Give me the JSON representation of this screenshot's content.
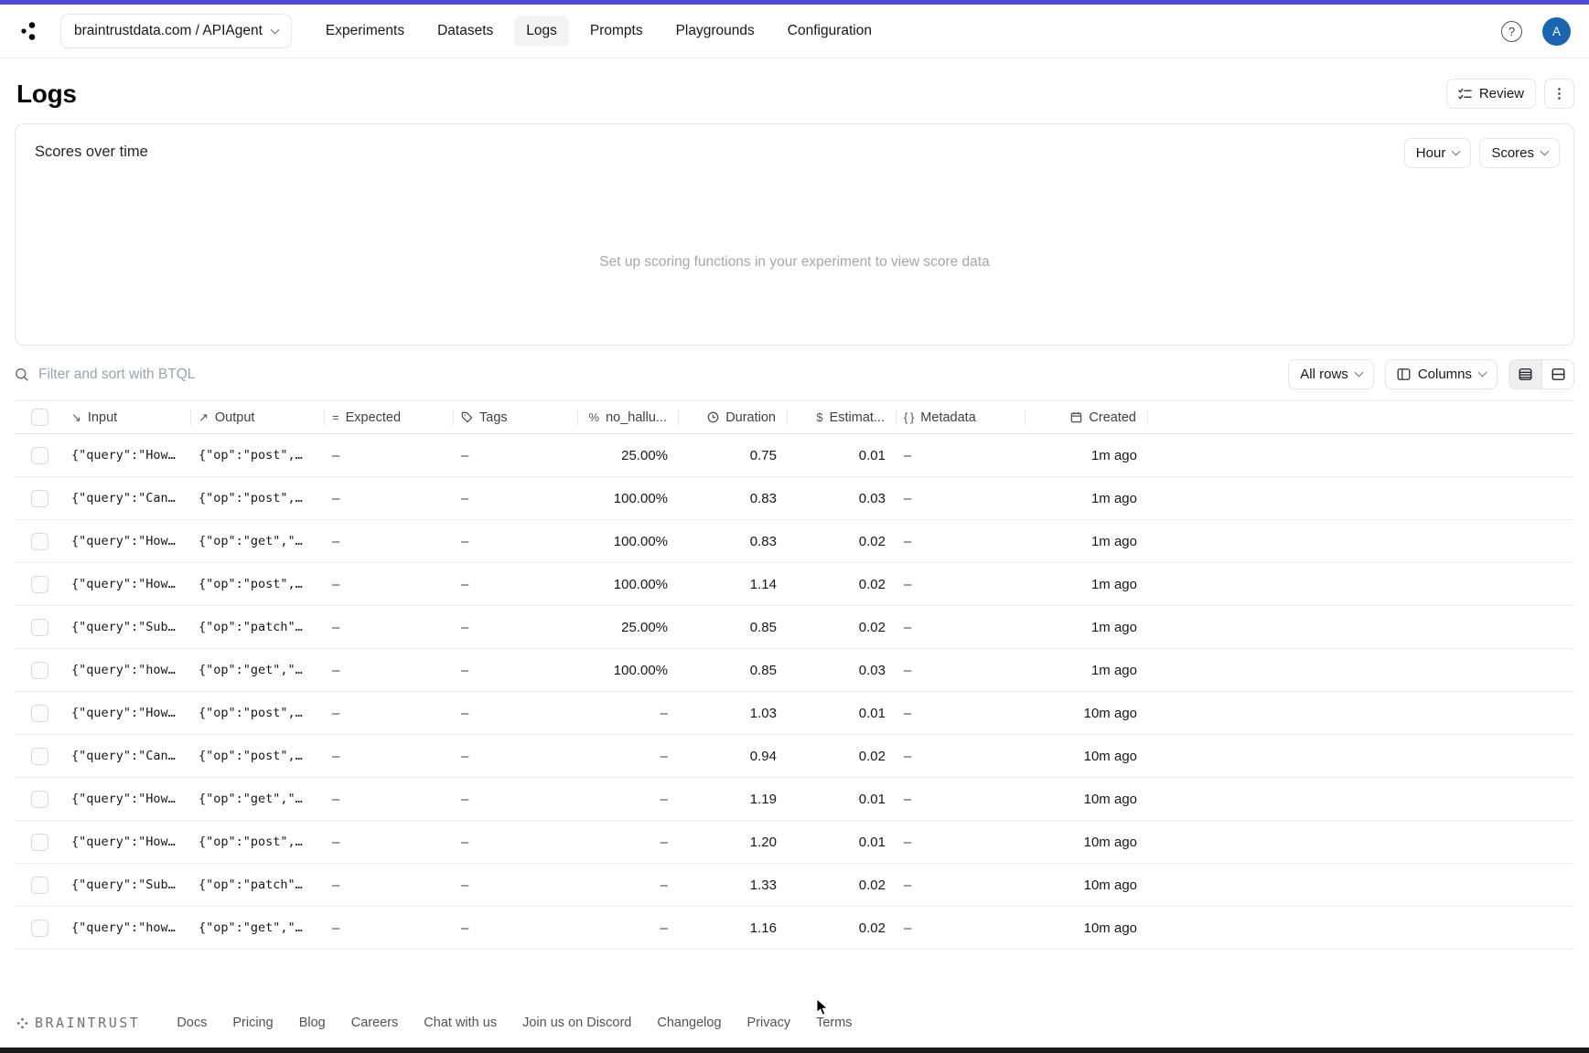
{
  "colors": {
    "accent_strip": "#4f49d8",
    "avatar_bg": "#1a65b0",
    "active_tab_bg": "#f4f4f5"
  },
  "header": {
    "project_selector": "braintrustdata.com / APIAgent",
    "nav": [
      "Experiments",
      "Datasets",
      "Logs",
      "Prompts",
      "Playgrounds",
      "Configuration"
    ],
    "active_tab": "Logs",
    "avatar_initial": "A",
    "help_glyph": "?"
  },
  "page": {
    "title": "Logs",
    "review_label": "Review"
  },
  "scores_panel": {
    "title": "Scores over time",
    "interval_label": "Hour",
    "metric_label": "Scores",
    "empty_text": "Set up scoring functions in your experiment to view score data"
  },
  "filter": {
    "placeholder": "Filter and sort with BTQL",
    "rows_filter_label": "All rows",
    "columns_label": "Columns"
  },
  "table": {
    "columns": [
      {
        "id": "select",
        "label": ""
      },
      {
        "id": "input",
        "label": "Input",
        "icon": "arrow-down-right"
      },
      {
        "id": "output",
        "label": "Output",
        "icon": "arrow-up-right"
      },
      {
        "id": "expected",
        "label": "Expected",
        "icon": "equals"
      },
      {
        "id": "tags",
        "label": "Tags",
        "icon": "tag"
      },
      {
        "id": "no_hallu",
        "label": "no_hallu...",
        "icon": "percent"
      },
      {
        "id": "duration",
        "label": "Duration",
        "icon": "clock"
      },
      {
        "id": "estimated",
        "label": "Estimat...",
        "icon": "dollar"
      },
      {
        "id": "metadata",
        "label": "Metadata",
        "icon": "braces"
      },
      {
        "id": "created",
        "label": "Created",
        "icon": "calendar"
      }
    ],
    "rows": [
      {
        "input": "{\"query\":\"How…",
        "output": "{\"op\":\"post\",…",
        "expected": "–",
        "tags": "–",
        "no_hallu": "25.00%",
        "duration": "0.75",
        "estimated": "0.01",
        "metadata": "–",
        "created": "1m ago"
      },
      {
        "input": "{\"query\":\"Can…",
        "output": "{\"op\":\"post\",…",
        "expected": "–",
        "tags": "–",
        "no_hallu": "100.00%",
        "duration": "0.83",
        "estimated": "0.03",
        "metadata": "–",
        "created": "1m ago"
      },
      {
        "input": "{\"query\":\"How…",
        "output": "{\"op\":\"get\",\"…",
        "expected": "–",
        "tags": "–",
        "no_hallu": "100.00%",
        "duration": "0.83",
        "estimated": "0.02",
        "metadata": "–",
        "created": "1m ago"
      },
      {
        "input": "{\"query\":\"How…",
        "output": "{\"op\":\"post\",…",
        "expected": "–",
        "tags": "–",
        "no_hallu": "100.00%",
        "duration": "1.14",
        "estimated": "0.02",
        "metadata": "–",
        "created": "1m ago"
      },
      {
        "input": "{\"query\":\"Sub…",
        "output": "{\"op\":\"patch\"…",
        "expected": "–",
        "tags": "–",
        "no_hallu": "25.00%",
        "duration": "0.85",
        "estimated": "0.02",
        "metadata": "–",
        "created": "1m ago"
      },
      {
        "input": "{\"query\":\"how…",
        "output": "{\"op\":\"get\",\"…",
        "expected": "–",
        "tags": "–",
        "no_hallu": "100.00%",
        "duration": "0.85",
        "estimated": "0.03",
        "metadata": "–",
        "created": "1m ago"
      },
      {
        "input": "{\"query\":\"How…",
        "output": "{\"op\":\"post\",…",
        "expected": "–",
        "tags": "–",
        "no_hallu": "–",
        "duration": "1.03",
        "estimated": "0.01",
        "metadata": "–",
        "created": "10m ago"
      },
      {
        "input": "{\"query\":\"Can…",
        "output": "{\"op\":\"post\",…",
        "expected": "–",
        "tags": "–",
        "no_hallu": "–",
        "duration": "0.94",
        "estimated": "0.02",
        "metadata": "–",
        "created": "10m ago"
      },
      {
        "input": "{\"query\":\"How…",
        "output": "{\"op\":\"get\",\"…",
        "expected": "–",
        "tags": "–",
        "no_hallu": "–",
        "duration": "1.19",
        "estimated": "0.01",
        "metadata": "–",
        "created": "10m ago"
      },
      {
        "input": "{\"query\":\"How…",
        "output": "{\"op\":\"post\",…",
        "expected": "–",
        "tags": "–",
        "no_hallu": "–",
        "duration": "1.20",
        "estimated": "0.01",
        "metadata": "–",
        "created": "10m ago"
      },
      {
        "input": "{\"query\":\"Sub…",
        "output": "{\"op\":\"patch\"…",
        "expected": "–",
        "tags": "–",
        "no_hallu": "–",
        "duration": "1.33",
        "estimated": "0.02",
        "metadata": "–",
        "created": "10m ago"
      },
      {
        "input": "{\"query\":\"how…",
        "output": "{\"op\":\"get\",\"…",
        "expected": "–",
        "tags": "–",
        "no_hallu": "–",
        "duration": "1.16",
        "estimated": "0.02",
        "metadata": "–",
        "created": "10m ago"
      }
    ]
  },
  "footer": {
    "brand": "BRAINTRUST",
    "links": [
      "Docs",
      "Pricing",
      "Blog",
      "Careers",
      "Chat with us",
      "Join us on Discord",
      "Changelog",
      "Privacy",
      "Terms"
    ]
  }
}
